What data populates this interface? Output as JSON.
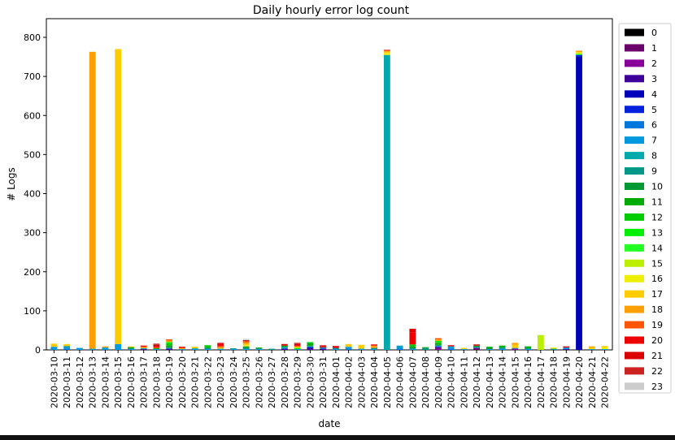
{
  "chart_data": {
    "type": "bar",
    "stacked": true,
    "title": "Daily hourly error log count",
    "xlabel": "date",
    "ylabel": "# Logs",
    "ylim": [
      0,
      800
    ],
    "yticks": [
      0,
      100,
      200,
      300,
      400,
      500,
      600,
      700,
      800
    ],
    "grid": false,
    "legend_placement": "right",
    "categories": [
      "2020-03-10",
      "2020-03-11",
      "2020-03-12",
      "2020-03-13",
      "2020-03-14",
      "2020-03-15",
      "2020-03-16",
      "2020-03-17",
      "2020-03-18",
      "2020-03-19",
      "2020-03-20",
      "2020-03-21",
      "2020-03-22",
      "2020-03-23",
      "2020-03-24",
      "2020-03-25",
      "2020-03-26",
      "2020-03-27",
      "2020-03-28",
      "2020-03-29",
      "2020-03-30",
      "2020-03-31",
      "2020-04-01",
      "2020-04-02",
      "2020-04-03",
      "2020-04-04",
      "2020-04-05",
      "2020-04-06",
      "2020-04-07",
      "2020-04-08",
      "2020-04-09",
      "2020-04-10",
      "2020-04-11",
      "2020-04-12",
      "2020-04-13",
      "2020-04-14",
      "2020-04-15",
      "2020-04-16",
      "2020-04-17",
      "2020-04-18",
      "2020-04-19",
      "2020-04-20",
      "2020-04-21",
      "2020-04-22"
    ],
    "series": [
      {
        "name": "0",
        "color": "#000000",
        "values": [
          0,
          0,
          0,
          0,
          0,
          0,
          0,
          0,
          0,
          0,
          0,
          0,
          0,
          0,
          0,
          0,
          0,
          0,
          0,
          0,
          0,
          0,
          0,
          0,
          0,
          0,
          0,
          0,
          0,
          0,
          0,
          0,
          0,
          0,
          0,
          0,
          0,
          0,
          0,
          0,
          0,
          0,
          0,
          0
        ]
      },
      {
        "name": "1",
        "color": "#6a006a",
        "values": [
          0,
          0,
          0,
          0,
          0,
          0,
          0,
          0,
          0,
          0,
          0,
          0,
          0,
          0,
          0,
          0,
          0,
          0,
          0,
          0,
          0,
          0,
          0,
          0,
          0,
          0,
          0,
          0,
          0,
          0,
          0,
          0,
          0,
          5,
          0,
          0,
          0,
          0,
          0,
          0,
          0,
          0,
          0,
          0
        ]
      },
      {
        "name": "2",
        "color": "#880099",
        "values": [
          0,
          0,
          0,
          0,
          0,
          0,
          0,
          0,
          0,
          0,
          0,
          0,
          0,
          0,
          0,
          0,
          0,
          0,
          0,
          0,
          0,
          0,
          0,
          0,
          0,
          0,
          0,
          0,
          0,
          0,
          5,
          0,
          0,
          0,
          0,
          0,
          3,
          0,
          0,
          0,
          0,
          0,
          0,
          0
        ]
      },
      {
        "name": "3",
        "color": "#3d0099",
        "values": [
          0,
          0,
          0,
          0,
          0,
          0,
          0,
          2,
          0,
          3,
          0,
          0,
          0,
          0,
          0,
          0,
          0,
          0,
          3,
          0,
          4,
          3,
          0,
          0,
          0,
          0,
          0,
          0,
          0,
          0,
          3,
          0,
          0,
          0,
          0,
          0,
          0,
          0,
          0,
          0,
          2,
          0,
          0,
          0
        ]
      },
      {
        "name": "4",
        "color": "#0000bb",
        "values": [
          0,
          0,
          0,
          0,
          0,
          0,
          0,
          0,
          0,
          0,
          0,
          0,
          0,
          0,
          0,
          0,
          0,
          0,
          0,
          0,
          3,
          0,
          0,
          0,
          0,
          0,
          0,
          0,
          0,
          0,
          0,
          0,
          0,
          0,
          0,
          0,
          0,
          0,
          0,
          0,
          0,
          750,
          0,
          0
        ]
      },
      {
        "name": "5",
        "color": "#0022dd",
        "values": [
          0,
          0,
          0,
          0,
          0,
          0,
          0,
          0,
          0,
          0,
          0,
          0,
          0,
          0,
          0,
          0,
          0,
          0,
          0,
          0,
          0,
          0,
          0,
          0,
          0,
          0,
          0,
          0,
          0,
          0,
          0,
          0,
          0,
          0,
          0,
          0,
          0,
          0,
          0,
          0,
          0,
          5,
          0,
          0
        ]
      },
      {
        "name": "6",
        "color": "#0077dd",
        "values": [
          0,
          3,
          0,
          0,
          0,
          0,
          0,
          0,
          0,
          0,
          0,
          0,
          0,
          0,
          0,
          0,
          0,
          0,
          0,
          0,
          0,
          0,
          0,
          3,
          0,
          0,
          0,
          3,
          0,
          0,
          0,
          3,
          0,
          0,
          0,
          0,
          0,
          0,
          0,
          0,
          0,
          0,
          0,
          0
        ]
      },
      {
        "name": "7",
        "color": "#0099dd",
        "values": [
          8,
          4,
          5,
          3,
          6,
          15,
          2,
          2,
          2,
          2,
          2,
          2,
          2,
          3,
          2,
          2,
          2,
          0,
          2,
          2,
          2,
          3,
          2,
          5,
          3,
          2,
          0,
          6,
          2,
          0,
          3,
          6,
          2,
          2,
          2,
          3,
          2,
          3,
          0,
          0,
          4,
          0,
          2,
          2
        ]
      },
      {
        "name": "8",
        "color": "#00aaaa",
        "values": [
          0,
          0,
          0,
          0,
          0,
          0,
          0,
          0,
          0,
          0,
          0,
          2,
          0,
          0,
          0,
          0,
          0,
          0,
          0,
          0,
          0,
          0,
          0,
          0,
          0,
          0,
          755,
          0,
          0,
          0,
          0,
          0,
          0,
          0,
          0,
          0,
          0,
          0,
          0,
          0,
          0,
          0,
          0,
          0
        ]
      },
      {
        "name": "9",
        "color": "#009988",
        "values": [
          0,
          3,
          0,
          0,
          0,
          0,
          2,
          0,
          0,
          0,
          0,
          0,
          3,
          0,
          2,
          3,
          2,
          3,
          3,
          0,
          0,
          0,
          3,
          0,
          0,
          3,
          0,
          2,
          2,
          5,
          0,
          0,
          0,
          0,
          0,
          2,
          0,
          0,
          0,
          3,
          0,
          0,
          0,
          0
        ]
      },
      {
        "name": "10",
        "color": "#009933",
        "values": [
          0,
          0,
          0,
          0,
          0,
          0,
          0,
          0,
          0,
          3,
          0,
          0,
          0,
          0,
          0,
          4,
          0,
          0,
          0,
          0,
          3,
          0,
          0,
          0,
          0,
          0,
          0,
          0,
          3,
          0,
          3,
          0,
          0,
          4,
          3,
          3,
          0,
          2,
          0,
          0,
          0,
          0,
          0,
          0
        ]
      },
      {
        "name": "11",
        "color": "#00aa00",
        "values": [
          0,
          0,
          0,
          0,
          0,
          0,
          3,
          0,
          2,
          4,
          0,
          0,
          3,
          0,
          0,
          0,
          2,
          0,
          3,
          0,
          5,
          0,
          0,
          0,
          0,
          0,
          0,
          0,
          3,
          2,
          3,
          0,
          0,
          0,
          3,
          3,
          0,
          4,
          0,
          0,
          0,
          0,
          0,
          0
        ]
      },
      {
        "name": "12",
        "color": "#00cc00",
        "values": [
          0,
          0,
          0,
          0,
          0,
          0,
          0,
          0,
          0,
          5,
          0,
          0,
          4,
          0,
          0,
          0,
          0,
          0,
          0,
          0,
          3,
          0,
          0,
          0,
          0,
          0,
          0,
          0,
          4,
          0,
          3,
          0,
          0,
          0,
          0,
          0,
          0,
          0,
          0,
          0,
          0,
          0,
          0,
          0
        ]
      },
      {
        "name": "13",
        "color": "#00ee00",
        "values": [
          0,
          0,
          0,
          0,
          0,
          0,
          0,
          0,
          0,
          3,
          0,
          0,
          0,
          0,
          0,
          0,
          0,
          0,
          0,
          3,
          0,
          0,
          0,
          0,
          0,
          0,
          0,
          0,
          0,
          0,
          3,
          0,
          0,
          0,
          0,
          0,
          0,
          0,
          0,
          0,
          0,
          0,
          0,
          0
        ]
      },
      {
        "name": "14",
        "color": "#22ff22",
        "values": [
          0,
          0,
          0,
          0,
          0,
          0,
          0,
          0,
          0,
          0,
          0,
          0,
          0,
          0,
          0,
          0,
          0,
          0,
          0,
          0,
          0,
          0,
          0,
          0,
          0,
          0,
          0,
          0,
          0,
          0,
          0,
          0,
          0,
          0,
          0,
          0,
          0,
          0,
          0,
          0,
          0,
          3,
          0,
          0
        ]
      },
      {
        "name": "15",
        "color": "#bbee00",
        "values": [
          0,
          0,
          0,
          0,
          0,
          0,
          0,
          0,
          0,
          0,
          0,
          0,
          0,
          0,
          0,
          0,
          0,
          0,
          0,
          0,
          0,
          0,
          0,
          0,
          0,
          0,
          0,
          0,
          0,
          0,
          0,
          0,
          0,
          0,
          0,
          0,
          0,
          0,
          38,
          0,
          0,
          0,
          0,
          0
        ]
      },
      {
        "name": "16",
        "color": "#eeee00",
        "values": [
          0,
          0,
          0,
          0,
          0,
          0,
          0,
          0,
          0,
          0,
          0,
          0,
          0,
          0,
          0,
          3,
          0,
          0,
          0,
          0,
          0,
          0,
          0,
          0,
          0,
          0,
          5,
          0,
          0,
          0,
          0,
          0,
          0,
          0,
          0,
          0,
          0,
          0,
          0,
          3,
          0,
          4,
          0,
          5
        ]
      },
      {
        "name": "17",
        "color": "#ffcc00",
        "values": [
          8,
          5,
          0,
          0,
          0,
          755,
          2,
          0,
          0,
          0,
          0,
          4,
          0,
          3,
          0,
          3,
          0,
          0,
          0,
          4,
          0,
          0,
          0,
          7,
          10,
          0,
          3,
          0,
          0,
          0,
          0,
          0,
          3,
          0,
          0,
          0,
          8,
          0,
          0,
          0,
          0,
          0,
          4,
          3
        ]
      },
      {
        "name": "18",
        "color": "#ffa000",
        "values": [
          0,
          0,
          0,
          760,
          3,
          0,
          0,
          4,
          0,
          4,
          3,
          0,
          0,
          0,
          0,
          4,
          0,
          0,
          0,
          0,
          0,
          0,
          0,
          0,
          0,
          6,
          3,
          0,
          0,
          0,
          4,
          0,
          0,
          0,
          0,
          0,
          5,
          0,
          0,
          0,
          0,
          4,
          3,
          0
        ]
      },
      {
        "name": "19",
        "color": "#ff5500",
        "values": [
          0,
          0,
          0,
          0,
          0,
          0,
          0,
          0,
          3,
          3,
          0,
          0,
          0,
          4,
          0,
          3,
          0,
          0,
          0,
          0,
          0,
          0,
          0,
          0,
          0,
          0,
          0,
          0,
          0,
          0,
          3,
          0,
          0,
          0,
          0,
          0,
          0,
          0,
          0,
          0,
          0,
          0,
          0,
          0
        ]
      },
      {
        "name": "20",
        "color": "#ee0000",
        "values": [
          0,
          0,
          0,
          0,
          0,
          0,
          0,
          3,
          0,
          0,
          0,
          0,
          0,
          5,
          0,
          0,
          0,
          0,
          0,
          3,
          0,
          0,
          5,
          0,
          0,
          3,
          2,
          0,
          30,
          0,
          0,
          3,
          0,
          0,
          0,
          0,
          0,
          0,
          0,
          0,
          0,
          0,
          0,
          0
        ]
      },
      {
        "name": "21",
        "color": "#dd0000",
        "values": [
          0,
          0,
          0,
          0,
          0,
          0,
          0,
          0,
          6,
          0,
          3,
          0,
          0,
          3,
          0,
          0,
          0,
          0,
          4,
          3,
          0,
          3,
          0,
          0,
          0,
          0,
          0,
          0,
          10,
          0,
          0,
          0,
          0,
          3,
          0,
          0,
          0,
          0,
          0,
          0,
          3,
          0,
          0,
          0
        ]
      },
      {
        "name": "22",
        "color": "#cc2222",
        "values": [
          0,
          0,
          0,
          0,
          0,
          0,
          0,
          0,
          3,
          0,
          0,
          0,
          0,
          0,
          0,
          3,
          0,
          0,
          0,
          3,
          0,
          3,
          0,
          0,
          0,
          0,
          0,
          0,
          0,
          0,
          0,
          0,
          0,
          0,
          0,
          0,
          0,
          0,
          0,
          0,
          0,
          0,
          0,
          0
        ]
      },
      {
        "name": "23",
        "color": "#cccccc",
        "values": [
          0,
          0,
          0,
          0,
          0,
          0,
          0,
          0,
          0,
          0,
          0,
          0,
          0,
          0,
          0,
          3,
          0,
          0,
          0,
          0,
          0,
          0,
          0,
          0,
          0,
          0,
          0,
          0,
          0,
          0,
          0,
          0,
          0,
          0,
          0,
          0,
          0,
          0,
          0,
          0,
          0,
          0,
          0,
          0
        ]
      }
    ]
  }
}
